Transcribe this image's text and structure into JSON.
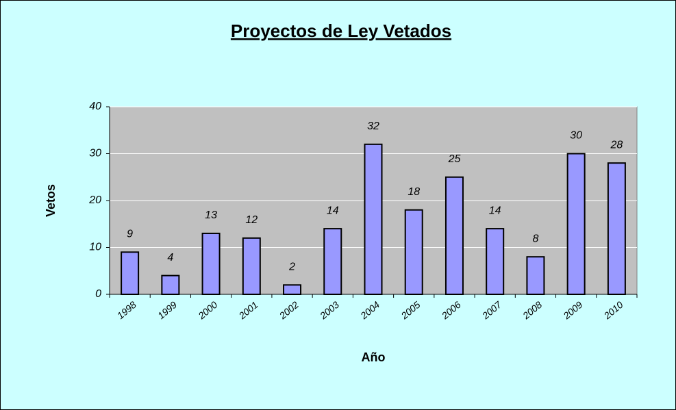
{
  "chart_data": {
    "type": "bar",
    "title": "Proyectos de Ley Vetados",
    "x_label": "Año",
    "y_label": "Vetos",
    "categories": [
      "1998",
      "1999",
      "2000",
      "2001",
      "2002",
      "2003",
      "2004",
      "2005",
      "2006",
      "2007",
      "2008",
      "2009",
      "2010"
    ],
    "values": [
      9,
      4,
      13,
      12,
      2,
      14,
      32,
      18,
      25,
      14,
      8,
      30,
      28
    ],
    "color": "#9999ff",
    "ylim": [
      0,
      40
    ],
    "yticks": [
      0,
      10,
      20,
      30,
      40
    ],
    "grid": true
  }
}
